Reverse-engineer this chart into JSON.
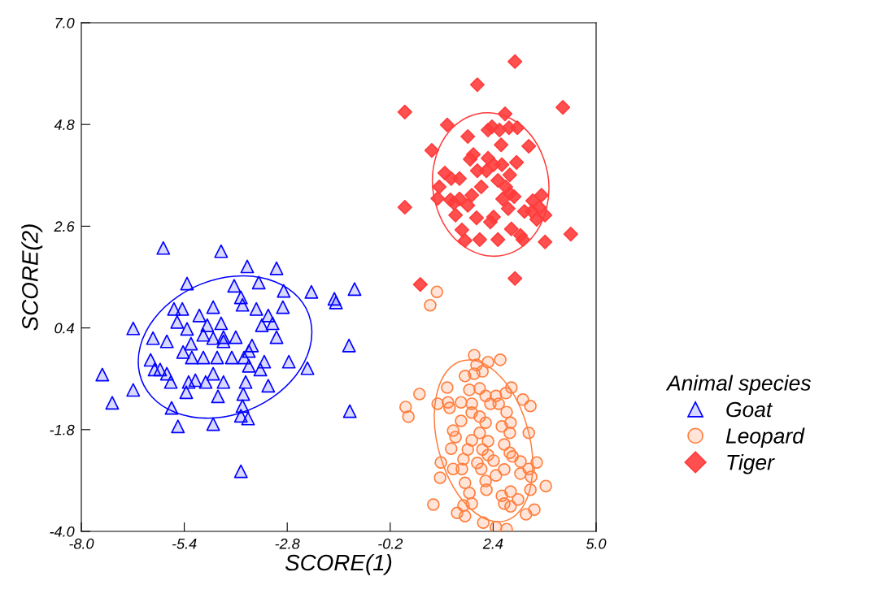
{
  "chart_data": {
    "type": "scatter",
    "xlabel": "SCORE(1)",
    "ylabel": "SCORE(2)",
    "legend_title": "Animal species",
    "legend": "right",
    "grid": false,
    "xlim": [
      -8.0,
      5.0
    ],
    "ylim": [
      -4.0,
      7.0
    ],
    "xticks": [
      {
        "value": -8.0,
        "label": "-8.0"
      },
      {
        "value": -5.4,
        "label": "-5.4"
      },
      {
        "value": -2.8,
        "label": "-2.8"
      },
      {
        "value": -0.2,
        "label": "-0.2"
      },
      {
        "value": 2.4,
        "label": "2.4"
      },
      {
        "value": 5.0,
        "label": "5.0"
      }
    ],
    "yticks": [
      {
        "value": -4.0,
        "label": "-4.0"
      },
      {
        "value": -1.8,
        "label": "-1.8"
      },
      {
        "value": 0.4,
        "label": "0.4"
      },
      {
        "value": 2.6,
        "label": "2.6"
      },
      {
        "value": 4.8,
        "label": "4.8"
      },
      {
        "value": 7.0,
        "label": "7.0"
      }
    ],
    "series": [
      {
        "name": "Goat",
        "marker": "triangle",
        "color": "#0000ff",
        "x": [
          -5.93,
          -4.47,
          -3.81,
          -3.07,
          -5.33,
          -4.14,
          -3.52,
          -2.89,
          -2.19,
          -1.61,
          -1.1,
          -1.57,
          -5.66,
          -5.45,
          -4.67,
          -5.02,
          -6.69,
          -5.58,
          -5.33,
          -4.82,
          -4.47,
          -3.93,
          -3.97,
          -3.58,
          -3.28,
          -2.91,
          -3.44,
          -3.17,
          -6.19,
          -5.84,
          -5.23,
          -4.92,
          -4.67,
          -4.41,
          -4.92,
          -5.21,
          -5.43,
          -6.25,
          -6.01,
          -5.84,
          -7.47,
          -6.69,
          -7.22,
          -5.29,
          -5.12,
          -4.67,
          -4.41,
          -4.2,
          -3.89,
          -3.69,
          -3.77,
          -3.85,
          -3.48,
          -3.28,
          -3.38,
          -2.76,
          -2.29,
          -1.24,
          -5.72,
          -5.56,
          -4.67,
          -3.97,
          -3.79,
          -5.35,
          -4.86,
          -4.55,
          -3.91,
          -3.93,
          -1.22,
          -3.97,
          -5.74,
          -4.57,
          -4.1,
          -3.07,
          -3.77,
          -4.41,
          -6.15
        ],
        "values": [
          2.13,
          2.06,
          1.73,
          1.69,
          1.36,
          1.31,
          1.38,
          1.2,
          1.18,
          1.03,
          1.24,
          0.95,
          0.81,
          0.81,
          0.85,
          0.67,
          0.39,
          0.53,
          0.38,
          0.46,
          0.5,
          0.9,
          1.06,
          0.81,
          0.67,
          0.85,
          0.46,
          0.5,
          0.18,
          0.11,
          0.06,
          0.25,
          0.18,
          0.2,
          -0.24,
          -0.24,
          -0.12,
          -0.29,
          -0.5,
          -0.59,
          -0.61,
          -0.94,
          -1.22,
          -0.77,
          -0.73,
          -0.59,
          -0.77,
          -0.24,
          -0.24,
          0.02,
          -0.42,
          -0.77,
          -0.5,
          -0.85,
          -0.33,
          -0.33,
          -0.47,
          0.02,
          -1.33,
          -1.73,
          -1.68,
          -1.5,
          -1.56,
          -0.99,
          -0.77,
          -1.08,
          -1.03,
          -1.29,
          -1.4,
          -2.7,
          -0.77,
          -0.24,
          0.2,
          0.2,
          -0.1,
          0.11,
          -0.5
        ]
      },
      {
        "name": "Leopard",
        "marker": "circle",
        "color": "#ff7f3f",
        "x": [
          0.98,
          0.81,
          1.92,
          1.98,
          2.27,
          2.58,
          1.69,
          1.92,
          2.13,
          1.24,
          0.54,
          1.8,
          2.06,
          2.21,
          2.47,
          2.72,
          2.86,
          3.15,
          3.34,
          0.19,
          0.26,
          1.0,
          1.3,
          1.59,
          1.86,
          2.33,
          2.54,
          2.74,
          1.86,
          1.59,
          2.06,
          2.21,
          2.62,
          2.84,
          2.82,
          1.39,
          1.45,
          2.06,
          3.3,
          1.86,
          2.27,
          2.68,
          1.34,
          1.76,
          2.13,
          2.82,
          2.89,
          2.27,
          2.41,
          1.65,
          2.0,
          3.09,
          3.5,
          1.08,
          1.39,
          1.61,
          2.1,
          2.68,
          3.3,
          3.09,
          1.06,
          1.69,
          2.21,
          2.47,
          3.36,
          2.23,
          2.62,
          2.84,
          3.03,
          1.8,
          3.34,
          3.73,
          0.89,
          1.65,
          1.49,
          1.86,
          2.68,
          2.84,
          3.44,
          3.23,
          1.69,
          2.15,
          2.47,
          2.74,
          1.26
        ],
        "values": [
          1.18,
          0.89,
          -0.19,
          -0.4,
          -0.34,
          -0.29,
          -0.64,
          -0.59,
          -0.54,
          -0.89,
          -1.03,
          -0.94,
          -0.91,
          -1.07,
          -1.07,
          -1.01,
          -0.89,
          -1.15,
          -1.29,
          -1.31,
          -1.52,
          -1.24,
          -1.33,
          -1.21,
          -1.24,
          -1.24,
          -1.24,
          -1.42,
          -1.43,
          -1.61,
          -1.52,
          -1.65,
          -1.73,
          -1.65,
          -1.87,
          -1.82,
          -1.96,
          -1.87,
          -1.87,
          -2.03,
          -2.05,
          -2.12,
          -2.21,
          -2.23,
          -2.23,
          -2.3,
          -2.38,
          -2.35,
          -2.47,
          -2.44,
          -2.52,
          -2.49,
          -2.51,
          -2.51,
          -2.65,
          -2.65,
          -2.65,
          -2.66,
          -2.65,
          -2.75,
          -2.84,
          -2.95,
          -2.91,
          -2.79,
          -2.82,
          -3.1,
          -3.23,
          -3.14,
          -3.31,
          -3.17,
          -3.1,
          -3.02,
          -3.42,
          -3.44,
          -3.6,
          -3.4,
          -3.4,
          -3.46,
          -3.53,
          -3.63,
          -3.67,
          -3.81,
          -3.91,
          -3.95,
          -1.21
        ]
      },
      {
        "name": "Tiger",
        "marker": "diamond",
        "color": "#ff3c3c",
        "x": [
          2.95,
          2.0,
          4.16,
          0.17,
          1.24,
          2.7,
          2.37,
          1.76,
          2.27,
          2.56,
          2.8,
          3.01,
          2.6,
          3.3,
          0.85,
          1.18,
          1.9,
          1.82,
          2.0,
          2.27,
          2.41,
          2.62,
          2.99,
          2.82,
          1.34,
          1.55,
          1.04,
          1.32,
          1.55,
          2.1,
          2.52,
          2.72,
          2.82,
          2.93,
          2.64,
          2.78,
          1.0,
          1.41,
          0.17,
          1.76,
          1.45,
          1.98,
          2.41,
          3.4,
          3.56,
          3.71,
          1.61,
          1.69,
          2.33,
          2.86,
          3.15,
          3.5,
          3.19,
          3.38,
          3.71,
          3.09,
          2.52,
          2.06,
          4.36,
          0.56,
          2.95,
          3.62,
          2.23,
          1.86
        ],
        "values": [
          6.16,
          5.66,
          5.17,
          5.07,
          4.79,
          5.03,
          4.75,
          4.54,
          4.68,
          4.68,
          4.73,
          4.73,
          4.36,
          4.33,
          4.24,
          3.75,
          4.15,
          4.05,
          3.8,
          4.07,
          3.93,
          3.93,
          3.98,
          3.71,
          3.63,
          3.63,
          3.45,
          3.17,
          3.19,
          3.45,
          3.59,
          3.45,
          3.31,
          3.24,
          3.19,
          2.98,
          3.2,
          3.1,
          3.01,
          3.05,
          2.84,
          2.78,
          2.8,
          3.15,
          3.01,
          2.84,
          2.52,
          2.29,
          2.69,
          2.54,
          2.31,
          2.75,
          2.92,
          2.92,
          2.26,
          2.4,
          2.31,
          2.31,
          2.43,
          1.34,
          1.47,
          3.27,
          3.8,
          3.27
        ]
      }
    ]
  }
}
